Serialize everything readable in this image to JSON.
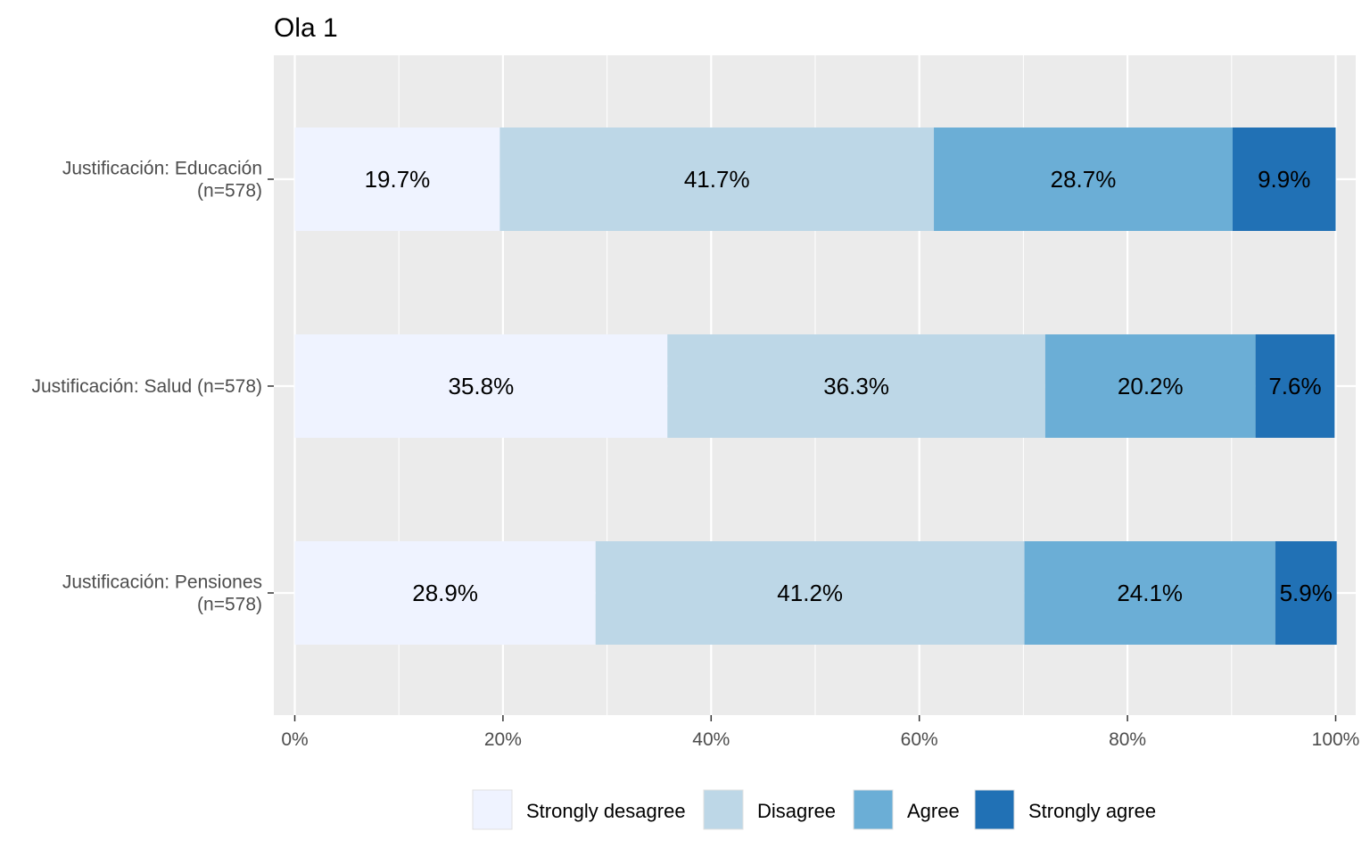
{
  "chart_data": {
    "type": "bar",
    "orientation": "horizontal",
    "stacked": true,
    "title": "Ola 1",
    "xlabel": "",
    "ylabel": "",
    "xlim": [
      0,
      100
    ],
    "x_ticks": [
      "0%",
      "20%",
      "40%",
      "60%",
      "80%",
      "100%"
    ],
    "grid": true,
    "legend_position": "bottom",
    "categories": [
      [
        "Justificación: Educación",
        "(n=578)"
      ],
      [
        "Justificación: Salud (n=578)"
      ],
      [
        "Justificación: Pensiones",
        "(n=578)"
      ]
    ],
    "series": [
      {
        "name": "Strongly desagree",
        "color": "#eff3ff",
        "values": [
          19.7,
          35.8,
          28.9
        ],
        "labels": [
          "19.7%",
          "35.8%",
          "28.9%"
        ]
      },
      {
        "name": "Disagree",
        "color": "#bdd7e7",
        "values": [
          41.7,
          36.3,
          41.2
        ],
        "labels": [
          "41.7%",
          "36.3%",
          "41.2%"
        ]
      },
      {
        "name": "Agree",
        "color": "#6baed6",
        "values": [
          28.7,
          20.2,
          24.1
        ],
        "labels": [
          "28.7%",
          "20.2%",
          "24.1%"
        ]
      },
      {
        "name": "Strongly agree",
        "color": "#2171b5",
        "values": [
          9.9,
          7.6,
          5.9
        ],
        "labels": [
          "9.9%",
          "7.6%",
          "5.9%"
        ]
      }
    ]
  }
}
